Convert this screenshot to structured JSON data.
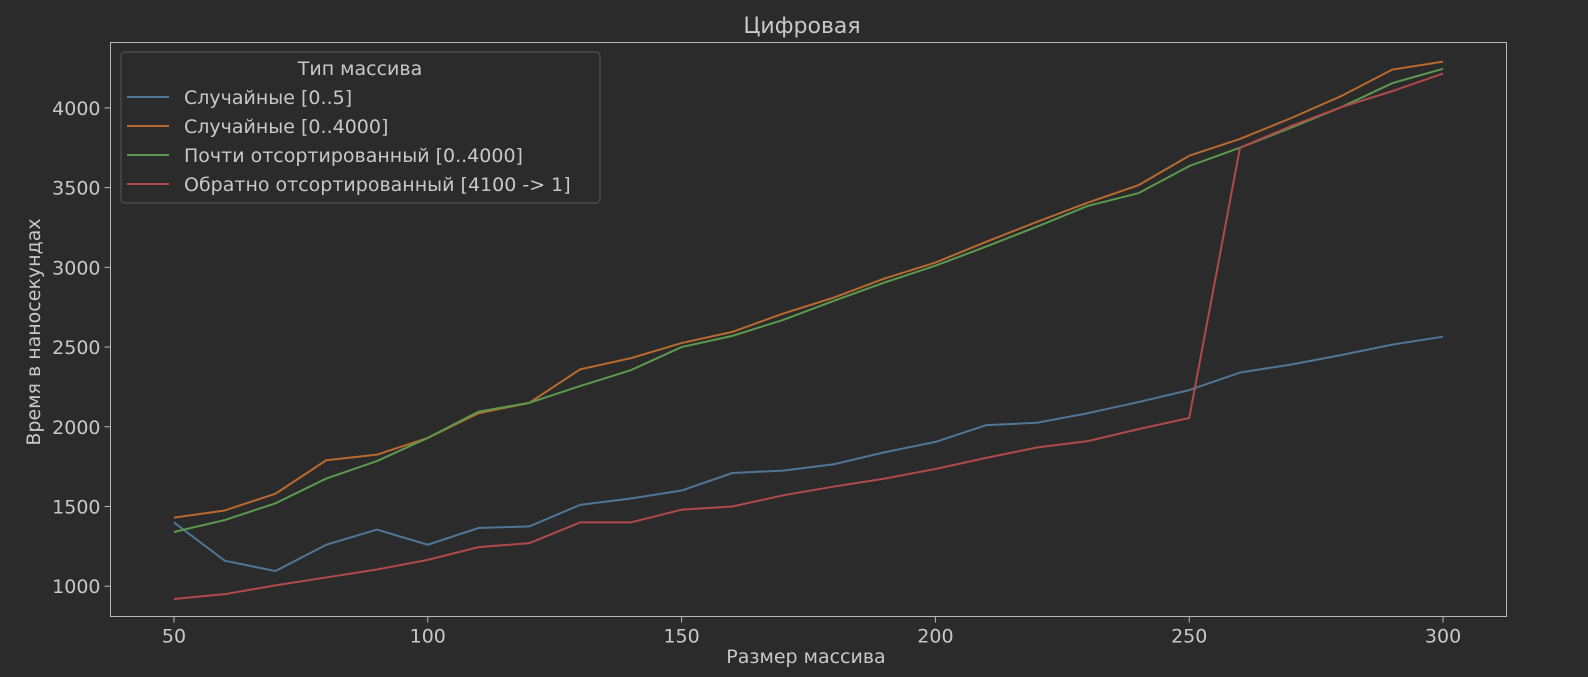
{
  "chart_data": {
    "type": "line",
    "title": "Цифровая",
    "xlabel": "Размер массива",
    "ylabel": "Время в наносекундах",
    "xlim": [
      37.5,
      312.5
    ],
    "ylim": [
      810,
      4410
    ],
    "xticks": [
      50,
      100,
      150,
      200,
      250,
      300
    ],
    "yticks": [
      1000,
      1500,
      2000,
      2500,
      3000,
      3500,
      4000
    ],
    "legend": {
      "title": "Тип массива",
      "placement": "top-left"
    },
    "x": [
      50,
      60,
      70,
      80,
      90,
      100,
      110,
      120,
      130,
      140,
      150,
      160,
      170,
      180,
      190,
      200,
      210,
      220,
      230,
      240,
      250,
      260,
      270,
      280,
      290,
      300
    ],
    "series": [
      {
        "name": "Случайные [0..5]",
        "color": "#4f7597",
        "values": [
          1400,
          1160,
          1095,
          1260,
          1355,
          1260,
          1365,
          1375,
          1510,
          1550,
          1600,
          1710,
          1725,
          1765,
          1840,
          1905,
          2010,
          2025,
          2085,
          2155,
          2230,
          2340,
          2390,
          2450,
          2515,
          2565
        ]
      },
      {
        "name": "Случайные [0..4000]",
        "color": "#b86a2f",
        "values": [
          1430,
          1475,
          1580,
          1790,
          1825,
          1930,
          2085,
          2150,
          2360,
          2430,
          2525,
          2595,
          2710,
          2810,
          2930,
          3030,
          3160,
          3285,
          3405,
          3515,
          3700,
          3805,
          3935,
          4075,
          4240,
          4290
        ]
      },
      {
        "name": "Почти отсортированный [0..4000]",
        "color": "#5b9a4d",
        "values": [
          1340,
          1415,
          1520,
          1675,
          1785,
          1930,
          2095,
          2150,
          2255,
          2355,
          2500,
          2570,
          2670,
          2790,
          2905,
          3010,
          3130,
          3255,
          3385,
          3465,
          3635,
          3750,
          3875,
          4005,
          4155,
          4245
        ]
      },
      {
        "name": "Обратно отсортированный [4100 -> 1]",
        "color": "#b04a4a",
        "values": [
          920,
          950,
          1005,
          1055,
          1105,
          1165,
          1245,
          1270,
          1400,
          1400,
          1480,
          1500,
          1570,
          1625,
          1675,
          1735,
          1805,
          1870,
          1910,
          1985,
          2055,
          3750,
          3885,
          4005,
          4105,
          4215
        ]
      }
    ]
  }
}
